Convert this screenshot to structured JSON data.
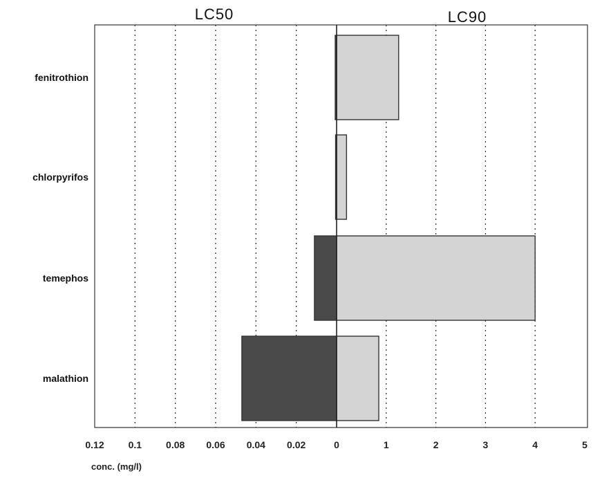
{
  "chart_data": {
    "type": "bar",
    "orientation": "horizontal",
    "left_title": "LC50",
    "right_title": "LC90",
    "xlabel": "conc. (mg/l)",
    "categories": [
      "fenitrothion",
      "chlorpyrifos",
      "temephos",
      "malathion"
    ],
    "series": [
      {
        "values": [
          0.0,
          0.0005,
          0.011,
          0.047
        ],
        "color": "#4a4a4a"
      },
      {
        "values": [
          1.25,
          0.2,
          4.0,
          0.85
        ],
        "color": "#d4d4d4"
      }
    ],
    "left_axis": {
      "lim": [
        0,
        0.12
      ],
      "ticks": [
        "0.12",
        "0.1",
        "0.08",
        "0.06",
        "0.04",
        "0.02",
        "0"
      ]
    },
    "right_axis": {
      "lim": [
        0,
        5
      ],
      "ticks": [
        "1",
        "2",
        "3",
        "4",
        "5"
      ]
    },
    "grid": "dotted vertical"
  }
}
